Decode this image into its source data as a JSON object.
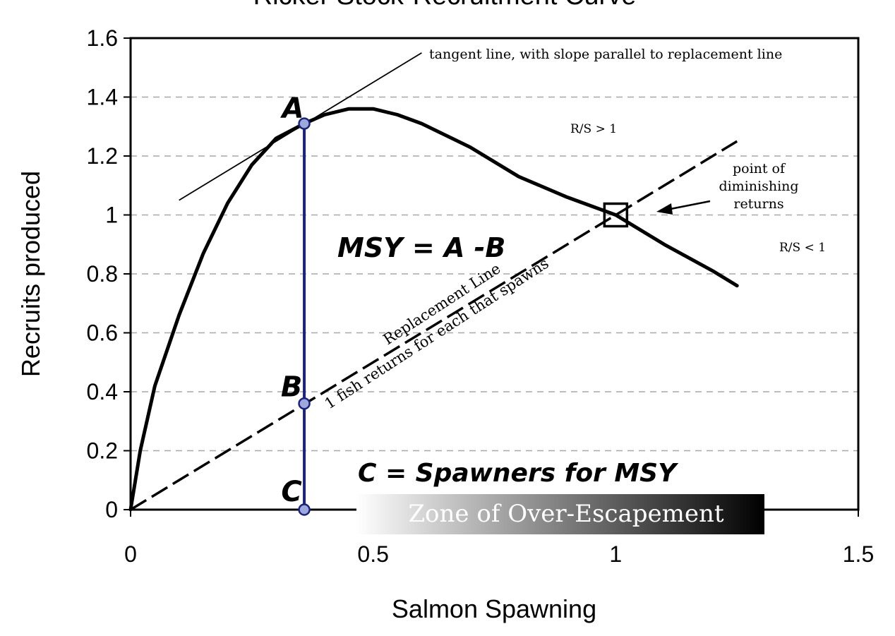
{
  "chart_data": {
    "type": "line",
    "title": "Ricker Stock-Recruitment Curve",
    "xlabel": "Salmon Spawning",
    "ylabel": "Recruits produced",
    "xlim": [
      0,
      1.5
    ],
    "ylim": [
      0,
      1.6
    ],
    "x_ticks": [
      "0",
      "0.5",
      "1",
      "1.5"
    ],
    "y_ticks": [
      "0",
      "0.2",
      "0.4",
      "0.6",
      "0.8",
      "1",
      "1.2",
      "1.4",
      "1.6"
    ],
    "grid": "horizontal dashed",
    "series": [
      {
        "style": "solid thick",
        "x": [
          0,
          0.02,
          0.05,
          0.1,
          0.15,
          0.2,
          0.25,
          0.3,
          0.358,
          0.4,
          0.45,
          0.5,
          0.55,
          0.6,
          0.7,
          0.8,
          0.9,
          1.0,
          1.1,
          1.2,
          1.25
        ],
        "y": [
          0,
          0.2,
          0.42,
          0.66,
          0.87,
          1.04,
          1.17,
          1.26,
          1.31,
          1.34,
          1.36,
          1.36,
          1.34,
          1.31,
          1.23,
          1.13,
          1.06,
          1.0,
          0.9,
          0.81,
          0.76
        ]
      },
      {
        "style": "dashed",
        "x": [
          0,
          1.25
        ],
        "y": [
          0,
          1.25
        ]
      },
      {
        "style": "thin tangent",
        "x": [
          0.1,
          0.6
        ],
        "y": [
          1.05,
          1.55
        ]
      }
    ],
    "msy_line": {
      "x": 0.358,
      "y_top": 1.31,
      "y_bottom": 0,
      "color": "#1a237e"
    },
    "points": [
      {
        "label": "A",
        "x": 0.358,
        "y": 1.31
      },
      {
        "label": "B",
        "x": 0.358,
        "y": 0.36
      },
      {
        "label": "C",
        "x": 0.358,
        "y": 0.0
      }
    ],
    "equilibrium_marker": {
      "x": 1.0,
      "y": 1.0
    },
    "annotations": {
      "tangent": "tangent line, with slope parallel to replacement line",
      "rs_gt": "R/S > 1",
      "rs_lt": "R/S < 1",
      "diminishing_1": "point of",
      "diminishing_2": "diminishing",
      "diminishing_3": "returns",
      "msy": "MSY = A -B",
      "replacement_1": "Replacement Line",
      "replacement_2": "1 fish returns for each that spawns",
      "spawners": "C = Spawners for MSY",
      "zone": "Zone of Over-Escapement"
    },
    "colors": {
      "curve": "#000000",
      "msy_line": "#1a237e",
      "point_fill": "#9fa8da",
      "grid": "#a8a8a8"
    }
  }
}
